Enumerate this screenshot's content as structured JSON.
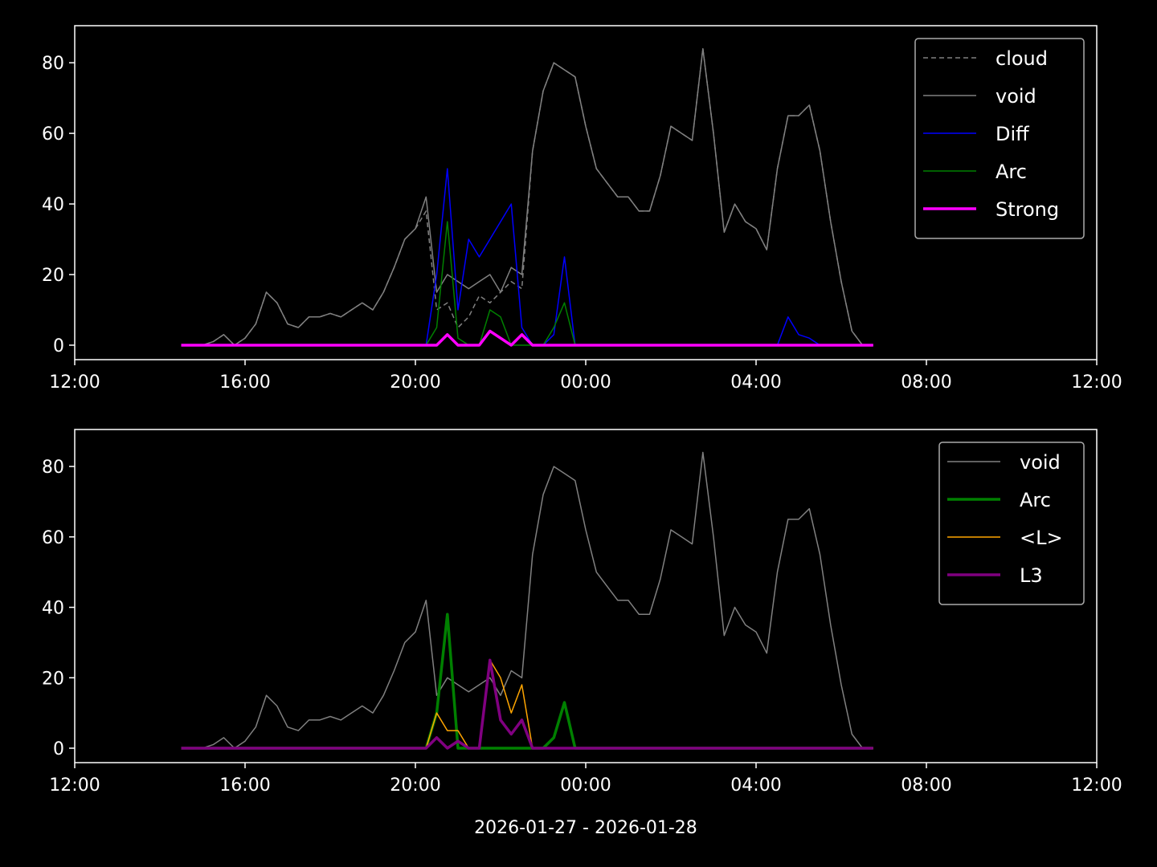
{
  "chart_data": [
    {
      "type": "line",
      "x": [
        14.5,
        14.75,
        15,
        15.25,
        15.5,
        15.75,
        16,
        16.25,
        16.5,
        16.75,
        17,
        17.25,
        17.5,
        17.75,
        18,
        18.25,
        18.5,
        18.75,
        19,
        19.25,
        19.5,
        19.75,
        20,
        20.25,
        20.5,
        20.75,
        21,
        21.25,
        21.5,
        21.75,
        22,
        22.25,
        22.5,
        22.75,
        23,
        23.25,
        23.5,
        23.75,
        24,
        24.25,
        24.5,
        24.75,
        25,
        25.25,
        25.5,
        25.75,
        26,
        26.25,
        26.5,
        26.75,
        27,
        27.25,
        27.5,
        27.75,
        28,
        28.25,
        28.5,
        28.75,
        29,
        29.25,
        29.5,
        29.75,
        30,
        30.25,
        30.5,
        30.75
      ],
      "xlim": [
        12,
        36
      ],
      "xticks": [
        {
          "value": 12,
          "label": "12:00"
        },
        {
          "value": 16,
          "label": "16:00"
        },
        {
          "value": 20,
          "label": "20:00"
        },
        {
          "value": 24,
          "label": "00:00"
        },
        {
          "value": 28,
          "label": "04:00"
        },
        {
          "value": 32,
          "label": "08:00"
        },
        {
          "value": 36,
          "label": "12:00"
        }
      ],
      "ylim": [
        -4.1,
        90.5
      ],
      "yticks": [
        0,
        20,
        40,
        60,
        80
      ],
      "legend": "upper right",
      "series": [
        {
          "name": "cloud",
          "color": "#808080",
          "linestyle": "dashed",
          "linewidth": 1.5,
          "values": [
            0,
            0,
            0,
            1,
            3,
            0,
            2,
            6,
            15,
            12,
            6,
            5,
            8,
            8,
            9,
            8,
            10,
            12,
            10,
            15,
            22,
            30,
            33,
            38,
            10,
            12,
            5,
            8,
            14,
            12,
            15,
            18,
            16,
            55,
            72,
            80,
            78,
            76,
            62,
            50,
            46,
            42,
            42,
            38,
            38,
            48,
            62,
            60,
            58,
            84,
            60,
            32,
            40,
            35,
            33,
            27,
            50,
            65,
            65,
            68,
            55,
            35,
            18,
            4,
            0,
            0
          ]
        },
        {
          "name": "void",
          "color": "#808080",
          "linestyle": "solid",
          "linewidth": 1.5,
          "values": [
            0,
            0,
            0,
            1,
            3,
            0,
            2,
            6,
            15,
            12,
            6,
            5,
            8,
            8,
            9,
            8,
            10,
            12,
            10,
            15,
            22,
            30,
            33,
            42,
            15,
            20,
            18,
            16,
            18,
            20,
            15,
            22,
            20,
            55,
            72,
            80,
            78,
            76,
            62,
            50,
            46,
            42,
            42,
            38,
            38,
            48,
            62,
            60,
            58,
            84,
            60,
            32,
            40,
            35,
            33,
            27,
            50,
            65,
            65,
            68,
            55,
            35,
            18,
            4,
            0,
            0
          ]
        },
        {
          "name": "Diff",
          "color": "#0000ff",
          "linestyle": "solid",
          "linewidth": 1.5,
          "values": [
            0,
            0,
            0,
            0,
            0,
            0,
            0,
            0,
            0,
            0,
            0,
            0,
            0,
            0,
            0,
            0,
            0,
            0,
            0,
            0,
            0,
            0,
            0,
            0,
            20,
            50,
            10,
            30,
            25,
            30,
            35,
            40,
            5,
            0,
            0,
            3,
            25,
            0,
            0,
            0,
            0,
            0,
            0,
            0,
            0,
            0,
            0,
            0,
            0,
            0,
            0,
            0,
            0,
            0,
            0,
            0,
            0,
            8,
            3,
            2,
            0,
            0,
            0,
            0,
            0,
            0
          ]
        },
        {
          "name": "Arc",
          "color": "#008000",
          "linestyle": "solid",
          "linewidth": 1.5,
          "values": [
            0,
            0,
            0,
            0,
            0,
            0,
            0,
            0,
            0,
            0,
            0,
            0,
            0,
            0,
            0,
            0,
            0,
            0,
            0,
            0,
            0,
            0,
            0,
            0,
            5,
            35,
            2,
            0,
            0,
            10,
            8,
            0,
            0,
            0,
            0,
            5,
            12,
            0,
            0,
            0,
            0,
            0,
            0,
            0,
            0,
            0,
            0,
            0,
            0,
            0,
            0,
            0,
            0,
            0,
            0,
            0,
            0,
            0,
            0,
            0,
            0,
            0,
            0,
            0,
            0,
            0
          ]
        },
        {
          "name": "Strong",
          "color": "#ff00ff",
          "linestyle": "solid",
          "linewidth": 3.5,
          "values": [
            0,
            0,
            0,
            0,
            0,
            0,
            0,
            0,
            0,
            0,
            0,
            0,
            0,
            0,
            0,
            0,
            0,
            0,
            0,
            0,
            0,
            0,
            0,
            0,
            0,
            3,
            0,
            0,
            0,
            4,
            2,
            0,
            3,
            0,
            0,
            0,
            0,
            0,
            0,
            0,
            0,
            0,
            0,
            0,
            0,
            0,
            0,
            0,
            0,
            0,
            0,
            0,
            0,
            0,
            0,
            0,
            0,
            0,
            0,
            0,
            0,
            0,
            0,
            0,
            0,
            0
          ]
        }
      ]
    },
    {
      "type": "line",
      "x": [
        14.5,
        14.75,
        15,
        15.25,
        15.5,
        15.75,
        16,
        16.25,
        16.5,
        16.75,
        17,
        17.25,
        17.5,
        17.75,
        18,
        18.25,
        18.5,
        18.75,
        19,
        19.25,
        19.5,
        19.75,
        20,
        20.25,
        20.5,
        20.75,
        21,
        21.25,
        21.5,
        21.75,
        22,
        22.25,
        22.5,
        22.75,
        23,
        23.25,
        23.5,
        23.75,
        24,
        24.25,
        24.5,
        24.75,
        25,
        25.25,
        25.5,
        25.75,
        26,
        26.25,
        26.5,
        26.75,
        27,
        27.25,
        27.5,
        27.75,
        28,
        28.25,
        28.5,
        28.75,
        29,
        29.25,
        29.5,
        29.75,
        30,
        30.25,
        30.5,
        30.75
      ],
      "xlim": [
        12,
        36
      ],
      "xticks": [
        {
          "value": 12,
          "label": "12:00"
        },
        {
          "value": 16,
          "label": "16:00"
        },
        {
          "value": 20,
          "label": "20:00"
        },
        {
          "value": 24,
          "label": "00:00"
        },
        {
          "value": 28,
          "label": "04:00"
        },
        {
          "value": 32,
          "label": "08:00"
        },
        {
          "value": 36,
          "label": "12:00"
        }
      ],
      "xlabel": "2026-01-27 - 2026-01-28",
      "ylim": [
        -4.1,
        90.5
      ],
      "yticks": [
        0,
        20,
        40,
        60,
        80
      ],
      "legend": "upper right",
      "series": [
        {
          "name": "void",
          "color": "#808080",
          "linestyle": "solid",
          "linewidth": 1.5,
          "values": [
            0,
            0,
            0,
            1,
            3,
            0,
            2,
            6,
            15,
            12,
            6,
            5,
            8,
            8,
            9,
            8,
            10,
            12,
            10,
            15,
            22,
            30,
            33,
            42,
            15,
            20,
            18,
            16,
            18,
            20,
            15,
            22,
            20,
            55,
            72,
            80,
            78,
            76,
            62,
            50,
            46,
            42,
            42,
            38,
            38,
            48,
            62,
            60,
            58,
            84,
            60,
            32,
            40,
            35,
            33,
            27,
            50,
            65,
            65,
            68,
            55,
            35,
            18,
            4,
            0,
            0
          ]
        },
        {
          "name": "Arc",
          "color": "#008000",
          "linestyle": "solid",
          "linewidth": 3.5,
          "values": [
            0,
            0,
            0,
            0,
            0,
            0,
            0,
            0,
            0,
            0,
            0,
            0,
            0,
            0,
            0,
            0,
            0,
            0,
            0,
            0,
            0,
            0,
            0,
            0,
            10,
            38,
            0,
            0,
            0,
            0,
            0,
            0,
            0,
            0,
            0,
            3,
            13,
            0,
            0,
            0,
            0,
            0,
            0,
            0,
            0,
            0,
            0,
            0,
            0,
            0,
            0,
            0,
            0,
            0,
            0,
            0,
            0,
            0,
            0,
            0,
            0,
            0,
            0,
            0,
            0,
            0
          ]
        },
        {
          "name": "<L>",
          "color": "#ffa500",
          "linestyle": "solid",
          "linewidth": 1.5,
          "values": [
            0,
            0,
            0,
            0,
            0,
            0,
            0,
            0,
            0,
            0,
            0,
            0,
            0,
            0,
            0,
            0,
            0,
            0,
            0,
            0,
            0,
            0,
            0,
            0,
            10,
            5,
            5,
            0,
            0,
            25,
            20,
            10,
            18,
            0,
            0,
            0,
            0,
            0,
            0,
            0,
            0,
            0,
            0,
            0,
            0,
            0,
            0,
            0,
            0,
            0,
            0,
            0,
            0,
            0,
            0,
            0,
            0,
            0,
            0,
            0,
            0,
            0,
            0,
            0,
            0,
            0
          ]
        },
        {
          "name": "L3",
          "color": "#800080",
          "linestyle": "solid",
          "linewidth": 3.5,
          "values": [
            0,
            0,
            0,
            0,
            0,
            0,
            0,
            0,
            0,
            0,
            0,
            0,
            0,
            0,
            0,
            0,
            0,
            0,
            0,
            0,
            0,
            0,
            0,
            0,
            3,
            0,
            2,
            0,
            0,
            25,
            8,
            4,
            8,
            0,
            0,
            0,
            0,
            0,
            0,
            0,
            0,
            0,
            0,
            0,
            0,
            0,
            0,
            0,
            0,
            0,
            0,
            0,
            0,
            0,
            0,
            0,
            0,
            0,
            0,
            0,
            0,
            0,
            0,
            0,
            0,
            0
          ]
        }
      ]
    }
  ]
}
